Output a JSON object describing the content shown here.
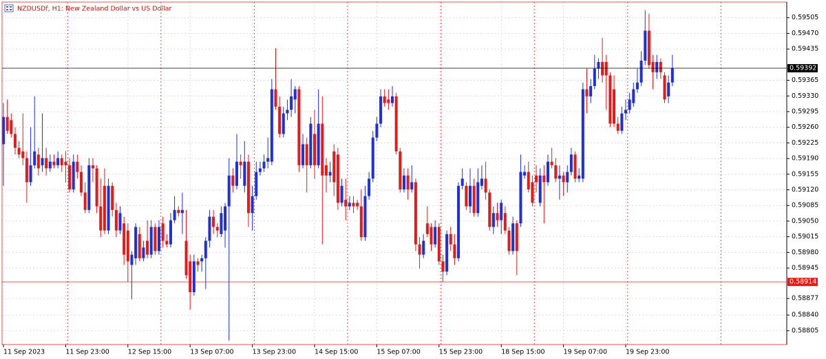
{
  "chart_data": {
    "type": "candlestick",
    "title": "NZDUSDf, H1: New Zealand Dollar vs US Dollar",
    "up_color": "#1f2fe0",
    "down_color": "#e41b1b",
    "grid": true,
    "ylim": [
      0.58774,
      0.5954
    ],
    "yticks": [
      0.59505,
      {
        "value": 0.5947,
        "label": "0.59470"
      },
      0.59435,
      0.59365,
      {
        "value": 0.5933,
        "label": "0.59330"
      },
      0.59295,
      {
        "value": 0.5926,
        "label": "0.59260"
      },
      0.59225,
      {
        "value": 0.5919,
        "label": "0.59190"
      },
      0.59155,
      {
        "value": 0.5912,
        "label": "0.59120"
      },
      0.59085,
      {
        "value": 0.5905,
        "label": "0.59050"
      },
      0.59015,
      {
        "value": 0.5898,
        "label": "0.58980"
      },
      0.58945,
      0.58877,
      {
        "value": 0.5884,
        "label": "0.58840"
      },
      0.58805
    ],
    "price_lines": [
      {
        "value": 0.59392,
        "color": "#000000"
      },
      {
        "value": 0.58914,
        "color": "#e41b1b"
      }
    ],
    "categories": [
      "11 Sep 2023",
      null,
      null,
      null,
      null,
      null,
      null,
      null,
      null,
      null,
      null,
      null,
      null,
      null,
      null,
      null,
      "11 Sep 23:00",
      null,
      null,
      null,
      null,
      null,
      null,
      null,
      null,
      null,
      null,
      null,
      null,
      null,
      null,
      null,
      "12 Sep 15:00",
      null,
      null,
      null,
      null,
      null,
      null,
      null,
      null,
      null,
      null,
      null,
      null,
      null,
      null,
      null,
      "13 Sep 07:00",
      null,
      null,
      null,
      null,
      null,
      null,
      null,
      null,
      null,
      null,
      null,
      null,
      null,
      null,
      null,
      "13 Sep 23:00",
      null,
      null,
      null,
      null,
      null,
      null,
      null,
      null,
      null,
      null,
      null,
      null,
      null,
      null,
      null,
      "14 Sep 15:00",
      null,
      null,
      null,
      null,
      null,
      null,
      null,
      null,
      null,
      null,
      null,
      null,
      null,
      null,
      null,
      "15 Sep 07:00",
      null,
      null,
      null,
      null,
      null,
      null,
      null,
      null,
      null,
      null,
      null,
      null,
      null,
      null,
      null,
      "15 Sep 23:00",
      null,
      null,
      null,
      null,
      null,
      null,
      null,
      null,
      null,
      null,
      null,
      null,
      null,
      null,
      null,
      "18 Sep 15:00",
      null,
      null,
      null,
      null,
      null,
      null,
      null,
      null,
      null,
      null,
      null,
      null,
      null,
      null,
      null,
      "19 Sep 07:00",
      null,
      null,
      null,
      null,
      null,
      null,
      null,
      null,
      null,
      null,
      null,
      null,
      null,
      null,
      null,
      "19 Sep 23:00",
      null,
      null,
      null,
      null,
      null,
      null,
      null,
      null,
      null,
      null,
      null,
      null
    ],
    "ohlc": [
      [
        0.59222,
        0.59314,
        0.59129,
        0.59283
      ],
      [
        0.59283,
        0.59322,
        0.59245,
        0.59252
      ],
      [
        0.59276,
        0.59291,
        0.59237,
        0.59245
      ],
      [
        0.59245,
        0.5926,
        0.59199,
        0.59214
      ],
      [
        0.59214,
        0.59229,
        0.59191,
        0.59199
      ],
      [
        0.59206,
        0.59291,
        0.59175,
        0.59191
      ],
      [
        0.59191,
        0.59206,
        0.59091,
        0.59137
      ],
      [
        0.59137,
        0.5926,
        0.59129,
        0.59175
      ],
      [
        0.59175,
        0.59329,
        0.59168,
        0.59206
      ],
      [
        0.59199,
        0.59214,
        0.59152,
        0.59168
      ],
      [
        0.59175,
        0.59291,
        0.5916,
        0.59191
      ],
      [
        0.59191,
        0.59214,
        0.59152,
        0.59168
      ],
      [
        0.59168,
        0.59199,
        0.5916,
        0.59183
      ],
      [
        0.59183,
        0.59199,
        0.59168,
        0.59175
      ],
      [
        0.59175,
        0.59206,
        0.59168,
        0.59191
      ],
      [
        0.59191,
        0.59199,
        0.5916,
        0.59175
      ],
      [
        0.59183,
        0.59206,
        0.59137,
        0.59175
      ],
      [
        0.59175,
        0.59191,
        0.59114,
        0.59121
      ],
      [
        0.59121,
        0.59199,
        0.59114,
        0.59183
      ],
      [
        0.59183,
        0.59199,
        0.59145,
        0.5916
      ],
      [
        0.5916,
        0.59175,
        0.59106,
        0.59114
      ],
      [
        0.59114,
        0.59137,
        0.59068,
        0.59075
      ],
      [
        0.59075,
        0.59191,
        0.59068,
        0.59175
      ],
      [
        0.59175,
        0.59191,
        0.59137,
        0.59168
      ],
      [
        0.59168,
        0.59175,
        0.59068,
        0.59083
      ],
      [
        0.59083,
        0.59145,
        0.59014,
        0.59029
      ],
      [
        0.59129,
        0.59168,
        0.59021,
        0.59029
      ],
      [
        0.59029,
        0.59145,
        0.59021,
        0.59129
      ],
      [
        0.59129,
        0.59137,
        0.5906,
        0.59075
      ],
      [
        0.59075,
        0.59091,
        0.59014,
        0.59029
      ],
      [
        0.59029,
        0.59083,
        0.59021,
        0.59068
      ],
      [
        0.59045,
        0.5906,
        0.58952,
        0.58975
      ],
      [
        0.59029,
        0.59045,
        0.58914,
        0.5896
      ],
      [
        0.58952,
        0.58983,
        0.58875,
        0.58975
      ],
      [
        0.58967,
        0.59045,
        0.58952,
        0.59037
      ],
      [
        0.59021,
        0.59037,
        0.5896,
        0.58967
      ],
      [
        0.58967,
        0.59006,
        0.5896,
        0.58991
      ],
      [
        0.59006,
        0.59052,
        0.58967,
        0.58975
      ],
      [
        0.58975,
        0.59052,
        0.58967,
        0.59037
      ],
      [
        0.59037,
        0.59045,
        0.58975,
        0.58983
      ],
      [
        0.58983,
        0.59052,
        0.58975,
        0.59037
      ],
      [
        0.59045,
        0.5906,
        0.58991,
        0.59006
      ],
      [
        0.59006,
        0.59021,
        0.58991,
        0.58998
      ],
      [
        0.58998,
        0.59068,
        0.58991,
        0.59052
      ],
      [
        0.59052,
        0.59106,
        0.59045,
        0.59075
      ],
      [
        0.59075,
        0.59083,
        0.5906,
        0.59068
      ],
      [
        0.59068,
        0.59114,
        0.59021,
        0.59075
      ],
      [
        0.59006,
        0.59075,
        0.58921,
        0.58929
      ],
      [
        0.5896,
        0.58975,
        0.58852,
        0.58891
      ],
      [
        0.58891,
        0.58975,
        0.58883,
        0.5896
      ],
      [
        0.5896,
        0.58967,
        0.58937,
        0.58952
      ],
      [
        0.5896,
        0.58975,
        0.58937,
        0.58967
      ],
      [
        0.58967,
        0.59014,
        0.58898,
        0.59006
      ],
      [
        0.59006,
        0.59075,
        0.58991,
        0.5906
      ],
      [
        0.5906,
        0.59075,
        0.59021,
        0.59037
      ],
      [
        0.59037,
        0.59045,
        0.59014,
        0.59029
      ],
      [
        0.59021,
        0.59083,
        0.59014,
        0.59068
      ],
      [
        0.59029,
        0.59091,
        0.58991,
        0.59083
      ],
      [
        0.59083,
        0.59191,
        0.58783,
        0.59152
      ],
      [
        0.59152,
        0.59168,
        0.59114,
        0.59129
      ],
      [
        0.59129,
        0.59245,
        0.59121,
        0.59183
      ],
      [
        0.59183,
        0.59199,
        0.59145,
        0.59175
      ],
      [
        0.59129,
        0.59229,
        0.59114,
        0.59183
      ],
      [
        0.59183,
        0.59199,
        0.59037,
        0.59068
      ],
      [
        0.59068,
        0.59129,
        0.59029,
        0.59106
      ],
      [
        0.59106,
        0.59183,
        0.59098,
        0.5916
      ],
      [
        0.5916,
        0.59183,
        0.59152,
        0.59168
      ],
      [
        0.59168,
        0.59199,
        0.5916,
        0.59183
      ],
      [
        0.59183,
        0.59237,
        0.59168,
        0.59191
      ],
      [
        0.59183,
        0.59368,
        0.59175,
        0.59345
      ],
      [
        0.59345,
        0.59437,
        0.59299,
        0.59306
      ],
      [
        0.59306,
        0.59329,
        0.59237,
        0.59245
      ],
      [
        0.59245,
        0.59306,
        0.59237,
        0.59291
      ],
      [
        0.59291,
        0.59322,
        0.59276,
        0.59299
      ],
      [
        0.59299,
        0.59368,
        0.59283,
        0.59329
      ],
      [
        0.59322,
        0.59352,
        0.59291,
        0.59345
      ],
      [
        0.59345,
        0.59352,
        0.5916,
        0.59175
      ],
      [
        0.59175,
        0.59245,
        0.59168,
        0.59222
      ],
      [
        0.59222,
        0.59237,
        0.59114,
        0.59175
      ],
      [
        0.59175,
        0.59283,
        0.59168,
        0.59268
      ],
      [
        0.59245,
        0.59299,
        0.59145,
        0.59175
      ],
      [
        0.59175,
        0.59345,
        0.59168,
        0.59268
      ],
      [
        0.59268,
        0.59329,
        0.58998,
        0.59152
      ],
      [
        0.59175,
        0.59191,
        0.59114,
        0.59152
      ],
      [
        0.59152,
        0.59183,
        0.59137,
        0.5916
      ],
      [
        0.59206,
        0.59222,
        0.59106,
        0.59137
      ],
      [
        0.59199,
        0.59214,
        0.59075,
        0.59091
      ],
      [
        0.59091,
        0.59145,
        0.59083,
        0.59129
      ],
      [
        0.59098,
        0.59145,
        0.59052,
        0.59083
      ],
      [
        0.59083,
        0.59106,
        0.59075,
        0.59091
      ],
      [
        0.59091,
        0.59106,
        0.59068,
        0.59083
      ],
      [
        0.59091,
        0.59098,
        0.59075,
        0.59083
      ],
      [
        0.59083,
        0.59121,
        0.59006,
        0.59014
      ],
      [
        0.59014,
        0.59129,
        0.59006,
        0.59106
      ],
      [
        0.59106,
        0.5916,
        0.59098,
        0.59145
      ],
      [
        0.59145,
        0.59252,
        0.59137,
        0.59237
      ],
      [
        0.59237,
        0.59283,
        0.59229,
        0.59268
      ],
      [
        0.59268,
        0.59345,
        0.5926,
        0.59329
      ],
      [
        0.59329,
        0.59345,
        0.59306,
        0.59314
      ],
      [
        0.59322,
        0.59345,
        0.59299,
        0.59314
      ],
      [
        0.59314,
        0.59352,
        0.59306,
        0.59329
      ],
      [
        0.59329,
        0.59337,
        0.59199,
        0.59206
      ],
      [
        0.59206,
        0.59214,
        0.59114,
        0.59121
      ],
      [
        0.59121,
        0.59168,
        0.59114,
        0.59152
      ],
      [
        0.59152,
        0.59168,
        0.59098,
        0.59121
      ],
      [
        0.59121,
        0.59175,
        0.59114,
        0.59137
      ],
      [
        0.59137,
        0.59145,
        0.58983,
        0.58998
      ],
      [
        0.58998,
        0.59014,
        0.58944,
        0.58975
      ],
      [
        0.58975,
        0.59021,
        0.58967,
        0.59006
      ],
      [
        0.59045,
        0.59083,
        0.59014,
        0.59021
      ],
      [
        0.59037,
        0.59045,
        0.58983,
        0.58998
      ],
      [
        0.58998,
        0.59052,
        0.58991,
        0.59037
      ],
      [
        0.59037,
        0.59045,
        0.58952,
        0.5896
      ],
      [
        0.5896,
        0.58975,
        0.58914,
        0.58937
      ],
      [
        0.58937,
        0.59029,
        0.58929,
        0.59021
      ],
      [
        0.59021,
        0.59037,
        0.58983,
        0.58998
      ],
      [
        0.58998,
        0.59021,
        0.58952,
        0.58967
      ],
      [
        0.58967,
        0.59137,
        0.5896,
        0.59129
      ],
      [
        0.59129,
        0.59168,
        0.59121,
        0.59145
      ],
      [
        0.59129,
        0.59137,
        0.59075,
        0.59083
      ],
      [
        0.59083,
        0.59168,
        0.59068,
        0.59129
      ],
      [
        0.59129,
        0.59145,
        0.5906,
        0.59068
      ],
      [
        0.59068,
        0.59168,
        0.5906,
        0.59137
      ],
      [
        0.59129,
        0.59175,
        0.59121,
        0.59145
      ],
      [
        0.59145,
        0.59183,
        0.59098,
        0.59114
      ],
      [
        0.59114,
        0.59121,
        0.59029,
        0.59037
      ],
      [
        0.59037,
        0.59083,
        0.59021,
        0.59068
      ],
      [
        0.59068,
        0.59091,
        0.59037,
        0.59052
      ],
      [
        0.59052,
        0.59098,
        0.59021,
        0.59091
      ],
      [
        0.59068,
        0.59083,
        0.59021,
        0.59029
      ],
      [
        0.59029,
        0.59037,
        0.58975,
        0.58983
      ],
      [
        0.58983,
        0.5906,
        0.58975,
        0.59045
      ],
      [
        0.59045,
        0.59052,
        0.58929,
        0.58983
      ],
      [
        0.59045,
        0.59199,
        0.59037,
        0.5916
      ],
      [
        0.59152,
        0.59175,
        0.59145,
        0.5916
      ],
      [
        0.5916,
        0.59183,
        0.59114,
        0.59121
      ],
      [
        0.59137,
        0.59152,
        0.59083,
        0.59091
      ],
      [
        0.59152,
        0.59175,
        0.59114,
        0.59137
      ],
      [
        0.59091,
        0.59168,
        0.59083,
        0.59152
      ],
      [
        0.59152,
        0.59175,
        0.59045,
        0.59137
      ],
      [
        0.59137,
        0.59199,
        0.59129,
        0.59183
      ],
      [
        0.59183,
        0.59214,
        0.59168,
        0.59175
      ],
      [
        0.59175,
        0.59191,
        0.59137,
        0.59145
      ],
      [
        0.59145,
        0.59175,
        0.59098,
        0.59152
      ],
      [
        0.59152,
        0.5916,
        0.59106,
        0.59137
      ],
      [
        0.59137,
        0.59175,
        0.59114,
        0.5916
      ],
      [
        0.5916,
        0.59214,
        0.59152,
        0.59199
      ],
      [
        0.59199,
        0.59206,
        0.59137,
        0.59145
      ],
      [
        0.59145,
        0.59168,
        0.59137,
        0.59152
      ],
      [
        0.59145,
        0.5936,
        0.59137,
        0.59345
      ],
      [
        0.59345,
        0.59391,
        0.59291,
        0.59329
      ],
      [
        0.59329,
        0.59368,
        0.59314,
        0.59352
      ],
      [
        0.59352,
        0.59422,
        0.59345,
        0.59391
      ],
      [
        0.59391,
        0.59414,
        0.59368,
        0.59406
      ],
      [
        0.59406,
        0.5946,
        0.5936,
        0.59376
      ],
      [
        0.59406,
        0.59422,
        0.59299,
        0.59376
      ],
      [
        0.59376,
        0.59383,
        0.5926,
        0.59268
      ],
      [
        0.59345,
        0.59376,
        0.5926,
        0.59268
      ],
      [
        0.59268,
        0.59283,
        0.59245,
        0.59252
      ],
      [
        0.59252,
        0.59306,
        0.59245,
        0.59291
      ],
      [
        0.59291,
        0.59322,
        0.59276,
        0.59299
      ],
      [
        0.59299,
        0.59337,
        0.59291,
        0.59322
      ],
      [
        0.59314,
        0.5936,
        0.59306,
        0.59345
      ],
      [
        0.59345,
        0.59391,
        0.59337,
        0.5936
      ],
      [
        0.5936,
        0.5943,
        0.59352,
        0.59409
      ],
      [
        0.59409,
        0.59522,
        0.59399,
        0.59476
      ],
      [
        0.59476,
        0.59514,
        0.59391,
        0.59399
      ],
      [
        0.59406,
        0.59422,
        0.59345,
        0.59383
      ],
      [
        0.59383,
        0.59422,
        0.59368,
        0.59406
      ],
      [
        0.59406,
        0.59414,
        0.59368,
        0.59383
      ],
      [
        0.59376,
        0.59383,
        0.59314,
        0.59322
      ],
      [
        0.59329,
        0.59376,
        0.59314,
        0.5936
      ],
      [
        0.5936,
        0.59422,
        0.59352,
        0.59392
      ]
    ]
  }
}
